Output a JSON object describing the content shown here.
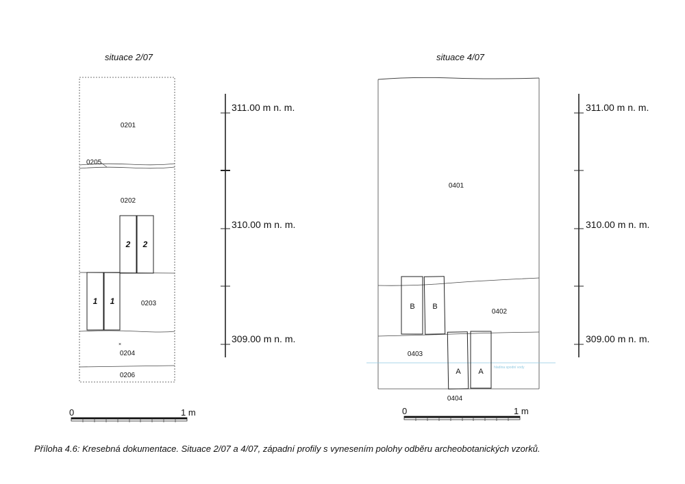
{
  "left_section": {
    "title": "situace 2/07",
    "layers": [
      "0201",
      "0205",
      "0202",
      "0203",
      "0204",
      "0206"
    ],
    "samples": [
      "2",
      "2",
      "1",
      "1"
    ],
    "point_marker": "×"
  },
  "right_section": {
    "title": "situace 4/07",
    "layers": [
      "0401",
      "0402",
      "0403",
      "0404"
    ],
    "samples": [
      "B",
      "B",
      "A",
      "A"
    ],
    "water_level_label": "hladina spodní vody"
  },
  "elevation_scale_left": [
    "311.00 m n. m.",
    "310.00 m n. m.",
    "309.00 m n. m."
  ],
  "elevation_scale_right": [
    "311.00 m n. m.",
    "310.00 m n. m.",
    "309.00 m n. m."
  ],
  "scale_bar_left": {
    "start": "0",
    "end": "1 m"
  },
  "scale_bar_right": {
    "start": "0",
    "end": "1 m"
  },
  "caption": "Příloha 4.6: Kresebná dokumentace. Situace 2/07 a 4/07, západní profily s vynesením polohy odběru archeobotanických vzorků.",
  "colors": {
    "lines": "#333333",
    "water": "#8ec9e0"
  }
}
